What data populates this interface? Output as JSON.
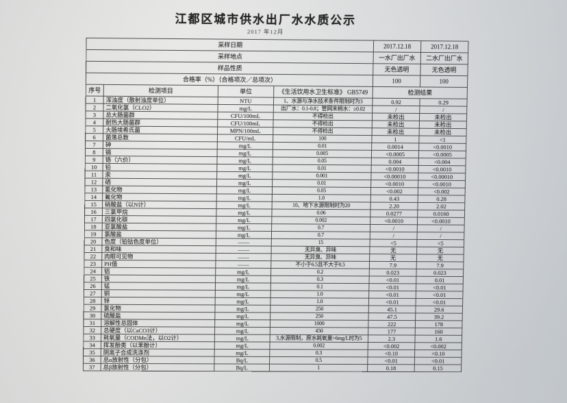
{
  "colors": {
    "ink": "#262626",
    "paper": "#e6e6e4",
    "paper-edge": "#c9ced3",
    "line": "#4a4a4a"
  },
  "title": "江都区城市供水出厂水水质公示",
  "subtitle": "2017 年12月",
  "meta_rows": [
    {
      "label": "采样日期",
      "v1": "2017.12.18",
      "v2": "2017.12.18"
    },
    {
      "label": "采样地点",
      "v1": "一水厂出厂水",
      "v2": "二水厂出厂水"
    },
    {
      "label": "样品性质",
      "v1": "无色透明",
      "v2": "无色透明"
    },
    {
      "label": "合格率（%）（合格项次／总项次）",
      "v1": "100",
      "v2": "100"
    }
  ],
  "columns": {
    "index": "序号",
    "item": "检测项目",
    "unit": "单位",
    "standard": "《生活饮用水卫生标准》 GB5749",
    "result": "检测结果"
  },
  "rows": [
    {
      "no": "1",
      "item": "浑浊度（散射浊度单位）",
      "unit": "NTU",
      "standard": "1、水源与净水技术条件限制时为3",
      "r1": "0.92",
      "r2": "0.29"
    },
    {
      "no": "2",
      "item": "二氧化氯（CLO2）",
      "unit": "mg/L",
      "standard": "出厂水：0.1-0.8；管网末梢水：≥0.02",
      "r1": "/",
      "r2": "/"
    },
    {
      "no": "3",
      "item": "总大肠菌群",
      "unit": "CFU/100mL",
      "standard": "不得检出",
      "r1": "未检出",
      "r2": "未检出"
    },
    {
      "no": "4",
      "item": "耐热大肠菌群",
      "unit": "CFU/100mL",
      "standard": "不得检出",
      "r1": "未检出",
      "r2": "未检出"
    },
    {
      "no": "5",
      "item": "大肠埃希氏菌",
      "unit": "MPN/100mL",
      "standard": "不得检出",
      "r1": "未检出",
      "r2": "未检出"
    },
    {
      "no": "6",
      "item": "菌落总数",
      "unit": "CFU/mL",
      "standard": "100",
      "r1": "1",
      "r2": "<1"
    },
    {
      "no": "7",
      "item": "砷",
      "unit": "mg/L",
      "standard": "0.01",
      "r1": "0.0014",
      "r2": "<0.0010"
    },
    {
      "no": "8",
      "item": "镉",
      "unit": "mg/L",
      "standard": "0.005",
      "r1": "<0.0005",
      "r2": "<0.0005"
    },
    {
      "no": "9",
      "item": "铬（六价）",
      "unit": "mg/L",
      "standard": "0.05",
      "r1": "0.004",
      "r2": "<0.004"
    },
    {
      "no": "10",
      "item": "铅",
      "unit": "mg/L",
      "standard": "0.01",
      "r1": "<0.0010",
      "r2": "<0.0010"
    },
    {
      "no": "11",
      "item": "汞",
      "unit": "mg/L",
      "standard": "0.001",
      "r1": "<0.00010",
      "r2": "<0.00010"
    },
    {
      "no": "12",
      "item": "硒",
      "unit": "mg/L",
      "standard": "0.01",
      "r1": "<0.0010",
      "r2": "<0.0010"
    },
    {
      "no": "13",
      "item": "氰化物",
      "unit": "mg/L",
      "standard": "0.05",
      "r1": "<0.002",
      "r2": "<0.002"
    },
    {
      "no": "14",
      "item": "氟化物",
      "unit": "mg/L",
      "standard": "1.0",
      "r1": "0.43",
      "r2": "0.28"
    },
    {
      "no": "15",
      "item": "硝酸盐（以N计）",
      "unit": "mg/L",
      "standard": "10、地下水源限制时为20",
      "r1": "2.20",
      "r2": "2.02"
    },
    {
      "no": "16",
      "item": "三氯甲烷",
      "unit": "mg/L",
      "standard": "0.06",
      "r1": "0.0277",
      "r2": "0.0160"
    },
    {
      "no": "17",
      "item": "四氯化碳",
      "unit": "mg/L",
      "standard": "0.002",
      "r1": "<0.0010",
      "r2": "<0.0010"
    },
    {
      "no": "18",
      "item": "亚氯酸盐",
      "unit": "mg/L",
      "standard": "0.7",
      "r1": "/",
      "r2": "/"
    },
    {
      "no": "19",
      "item": "氯酸盐",
      "unit": "mg/L",
      "standard": "0.7",
      "r1": "/",
      "r2": "/"
    },
    {
      "no": "20",
      "item": "色度（铂钴色度单位）",
      "unit": "——",
      "standard": "15",
      "r1": "<5",
      "r2": "<5"
    },
    {
      "no": "21",
      "item": "臭和味",
      "unit": "——",
      "standard": "无异臭、异味",
      "r1": "无",
      "r2": "无"
    },
    {
      "no": "22",
      "item": "肉眼可见物",
      "unit": "——",
      "standard": "无异臭、异味",
      "r1": "无",
      "r2": "无"
    },
    {
      "no": "23",
      "item": "PH值",
      "unit": "——",
      "standard": "不小于6.5且不大于8.5",
      "r1": "7.9",
      "r2": "7.9"
    },
    {
      "no": "24",
      "item": "铝",
      "unit": "mg/L",
      "standard": "0.2",
      "r1": "0.023",
      "r2": "0.023"
    },
    {
      "no": "25",
      "item": "铁",
      "unit": "mg/L",
      "standard": "0.3",
      "r1": "<0.01",
      "r2": "0.01"
    },
    {
      "no": "26",
      "item": "锰",
      "unit": "mg/L",
      "standard": "0.1",
      "r1": "<0.01",
      "r2": "<0.01"
    },
    {
      "no": "27",
      "item": "铜",
      "unit": "mg/L",
      "standard": "1.0",
      "r1": "<0.01",
      "r2": "<0.01"
    },
    {
      "no": "28",
      "item": "锌",
      "unit": "mg/L",
      "standard": "1.0",
      "r1": "<0.01",
      "r2": "<0.01"
    },
    {
      "no": "29",
      "item": "氯化物",
      "unit": "mg/L",
      "standard": "250",
      "r1": "45.1",
      "r2": "29.6"
    },
    {
      "no": "30",
      "item": "硫酸盐",
      "unit": "mg/L",
      "standard": "250",
      "r1": "47.5",
      "r2": "39.2"
    },
    {
      "no": "31",
      "item": "溶解性总固体",
      "unit": "mg/L",
      "standard": "1000",
      "r1": "222",
      "r2": "178"
    },
    {
      "no": "32",
      "item": "总硬度（以CaCO3计）",
      "unit": "mg/L",
      "standard": "450",
      "r1": "177",
      "r2": "160"
    },
    {
      "no": "33",
      "item": "耗氧量（CODMn法，以O2计）",
      "unit": "mg/L",
      "standard": "3,水源限制，原水耗氧量>6mg/L时为5",
      "r1": "2.3",
      "r2": "1.6"
    },
    {
      "no": "34",
      "item": "挥发酚类（以苯酚计）",
      "unit": "mg/L",
      "standard": "0.002",
      "r1": "<0.002",
      "r2": "<0.002"
    },
    {
      "no": "35",
      "item": "阴离子合成洗涤剂",
      "unit": "mg/L",
      "standard": "0.3",
      "r1": "<0.10",
      "r2": "<0.10"
    },
    {
      "no": "36",
      "item": "总α放射性（分包）",
      "unit": "Bq/L",
      "standard": "0.5",
      "r1": "<0.01",
      "r2": "<0.01"
    },
    {
      "no": "37",
      "item": "总β放射性（分包）",
      "unit": "Bq/L",
      "standard": "1",
      "r1": "0.18",
      "r2": "0.15"
    }
  ]
}
